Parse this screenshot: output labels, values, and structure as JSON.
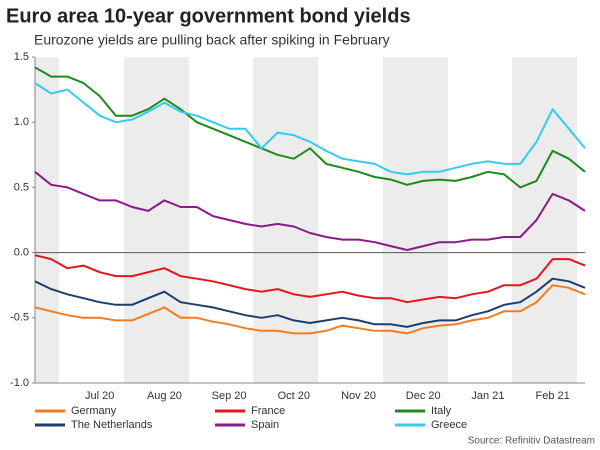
{
  "chart_data": {
    "type": "line",
    "title": "Euro area 10-year government bond yields",
    "subtitle": "Eurozone yields are pulling back after spiking in February",
    "source": "Source: Refinitiv Datastream",
    "categories": [
      null,
      null,
      null,
      null,
      "Jul 20",
      null,
      null,
      null,
      "Aug 20",
      null,
      null,
      null,
      "Sep 20",
      null,
      null,
      null,
      "Oct 20",
      null,
      null,
      null,
      "Nov 20",
      null,
      null,
      null,
      "Dec 20",
      null,
      null,
      null,
      "Jan 21",
      null,
      null,
      null,
      "Feb 21",
      null,
      null
    ],
    "ylim": [
      -1.0,
      1.5
    ],
    "yticks": [
      {
        "value": -1.0,
        "label": "-1.0"
      },
      -0.5,
      {
        "value": 0.0,
        "label": "0.0"
      },
      0.5,
      {
        "value": 1.0,
        "label": "1.0"
      },
      1.5
    ],
    "series": [
      {
        "name": "Germany",
        "color": "#f47c20",
        "values": [
          -0.42,
          -0.45,
          -0.48,
          -0.5,
          -0.5,
          -0.52,
          -0.52,
          -0.47,
          -0.42,
          -0.5,
          -0.5,
          -0.53,
          -0.55,
          -0.58,
          -0.6,
          -0.6,
          -0.62,
          -0.62,
          -0.6,
          -0.56,
          -0.58,
          -0.6,
          -0.6,
          -0.62,
          -0.58,
          -0.56,
          -0.55,
          -0.52,
          -0.5,
          -0.45,
          -0.45,
          -0.38,
          -0.25,
          -0.27,
          -0.32
        ]
      },
      {
        "name": "France",
        "color": "#e8141b",
        "values": [
          -0.02,
          -0.05,
          -0.12,
          -0.1,
          -0.15,
          -0.18,
          -0.18,
          -0.15,
          -0.12,
          -0.18,
          -0.2,
          -0.22,
          -0.25,
          -0.28,
          -0.3,
          -0.28,
          -0.32,
          -0.34,
          -0.32,
          -0.3,
          -0.33,
          -0.35,
          -0.35,
          -0.38,
          -0.36,
          -0.34,
          -0.35,
          -0.32,
          -0.3,
          -0.25,
          -0.25,
          -0.2,
          -0.05,
          -0.05,
          -0.1
        ]
      },
      {
        "name": "Italy",
        "color": "#1e8a1e",
        "values": [
          1.42,
          1.35,
          1.35,
          1.3,
          1.2,
          1.05,
          1.05,
          1.1,
          1.18,
          1.1,
          1.0,
          0.95,
          0.9,
          0.85,
          0.8,
          0.75,
          0.72,
          0.8,
          0.68,
          0.65,
          0.62,
          0.58,
          0.56,
          0.52,
          0.55,
          0.56,
          0.55,
          0.58,
          0.62,
          0.6,
          0.5,
          0.55,
          0.78,
          0.72,
          0.62
        ]
      },
      {
        "name": "The Netherlands",
        "color": "#1f3c6e",
        "values": [
          -0.22,
          -0.28,
          -0.32,
          -0.35,
          -0.38,
          -0.4,
          -0.4,
          -0.35,
          -0.3,
          -0.38,
          -0.4,
          -0.42,
          -0.45,
          -0.48,
          -0.5,
          -0.48,
          -0.52,
          -0.54,
          -0.52,
          -0.5,
          -0.52,
          -0.55,
          -0.55,
          -0.57,
          -0.54,
          -0.52,
          -0.52,
          -0.48,
          -0.45,
          -0.4,
          -0.38,
          -0.3,
          -0.2,
          -0.22,
          -0.27
        ]
      },
      {
        "name": "Spain",
        "color": "#8b1a8b",
        "values": [
          0.62,
          0.52,
          0.5,
          0.45,
          0.4,
          0.4,
          0.35,
          0.32,
          0.4,
          0.35,
          0.35,
          0.28,
          0.25,
          0.22,
          0.2,
          0.22,
          0.2,
          0.15,
          0.12,
          0.1,
          0.1,
          0.08,
          0.05,
          0.02,
          0.05,
          0.08,
          0.08,
          0.1,
          0.1,
          0.12,
          0.12,
          0.25,
          0.45,
          0.4,
          0.32
        ]
      },
      {
        "name": "Greece",
        "color": "#33ccf0",
        "values": [
          1.3,
          1.22,
          1.25,
          1.15,
          1.05,
          1.0,
          1.02,
          1.08,
          1.15,
          1.08,
          1.05,
          1.0,
          0.95,
          0.95,
          0.8,
          0.92,
          0.9,
          0.85,
          0.78,
          0.72,
          0.7,
          0.68,
          0.62,
          0.6,
          0.62,
          0.62,
          0.65,
          0.68,
          0.7,
          0.68,
          0.68,
          0.85,
          1.1,
          0.95,
          0.8
        ]
      }
    ]
  }
}
